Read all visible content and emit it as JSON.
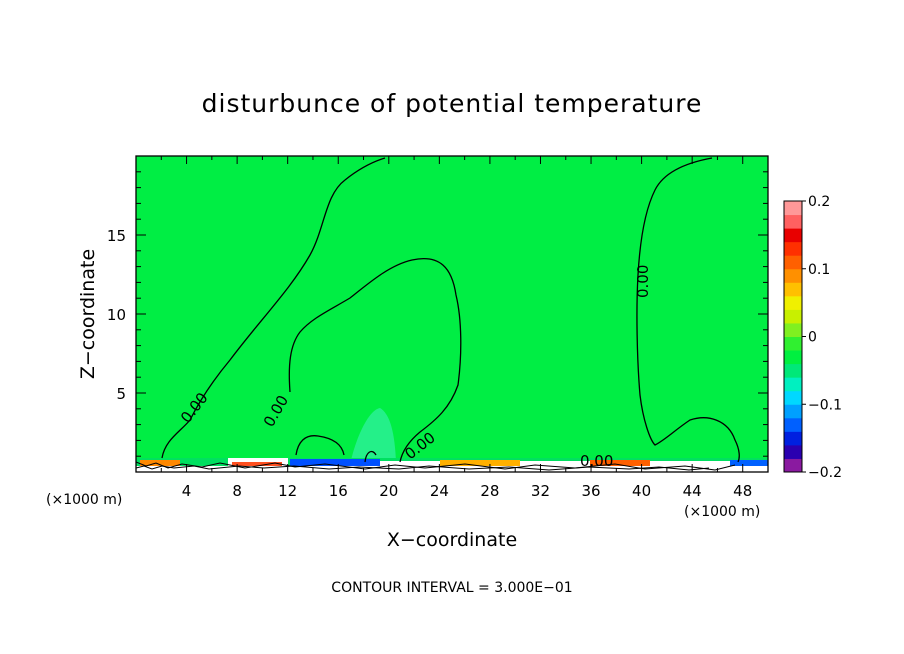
{
  "chart_data": {
    "type": "heatmap",
    "title": "disturbunce of potential temperature",
    "xlabel": "X−coordinate",
    "ylabel": "Z−coordinate",
    "x_unit_left": "(×1000 m)",
    "x_unit_right": "(×1000 m)",
    "footer": "CONTOUR INTERVAL = 3.000E−01",
    "xlim": [
      0,
      50
    ],
    "ylim": [
      0,
      20
    ],
    "x_ticks": [
      "4",
      "8",
      "12",
      "16",
      "20",
      "24",
      "28",
      "32",
      "36",
      "40",
      "44",
      "48"
    ],
    "y_ticks": [
      "5",
      "10",
      "15"
    ],
    "colorbar": {
      "ticks": [
        "0.2",
        "0.1",
        "0",
        "−0.1",
        "−0.2"
      ],
      "range": [
        -0.2,
        0.2
      ],
      "colors": [
        "#8a1aa0",
        "#2a00b0",
        "#0020e0",
        "#0060ff",
        "#00a0ff",
        "#00d8ff",
        "#00f0c0",
        "#00e878",
        "#00f040",
        "#30f030",
        "#80f020",
        "#c8f000",
        "#f0f000",
        "#ffc000",
        "#ff9000",
        "#ff6000",
        "#ff3000",
        "#e80000",
        "#ff6060",
        "#ff9898"
      ]
    },
    "background_value_color": "#00ee44",
    "contour_labels": [
      "0.00",
      "0.00",
      "0.00",
      "0.00",
      "0.00"
    ]
  }
}
